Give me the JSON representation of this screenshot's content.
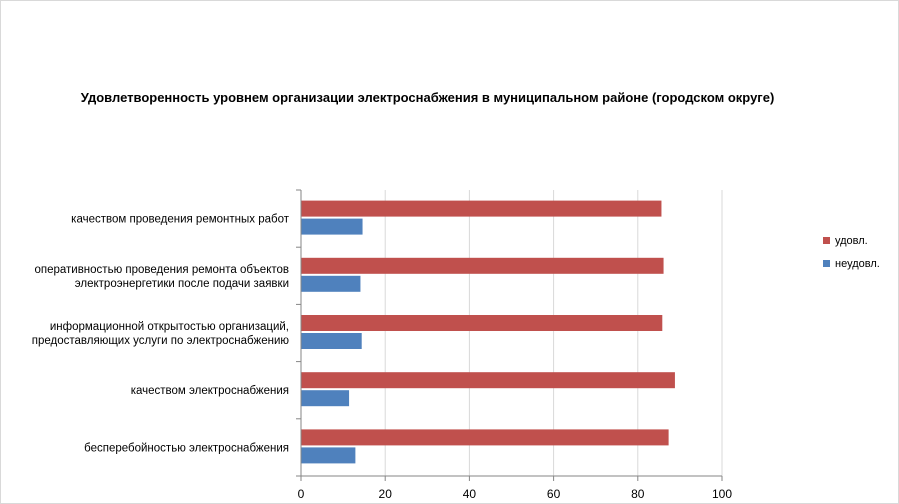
{
  "chart_data": {
    "type": "bar",
    "orientation": "horizontal",
    "title": "Удовлетворенность уровнем организации электроснабжения в муниципальном районе (городском округе)",
    "categories": [
      [
        "качеством проведения ремонтных работ"
      ],
      [
        "оперативностью проведения ремонта объектов",
        "электроэнергетики после подачи заявки"
      ],
      [
        "информационной открытостью организаций,",
        "предоставляющих услуги по электроснабжению"
      ],
      [
        "качеством электроснабжения"
      ],
      [
        "бесперебойностью электроснабжения"
      ]
    ],
    "series": [
      {
        "name": "удовл.",
        "color": "#c0504d",
        "values": [
          85.5,
          86,
          85.7,
          88.7,
          87.2
        ]
      },
      {
        "name": "неудовл.",
        "color": "#4f81bd",
        "values": [
          14.5,
          14,
          14.3,
          11.3,
          12.8
        ]
      }
    ],
    "xlim": [
      0,
      100
    ],
    "xticks": [
      0,
      20,
      40,
      60,
      80,
      100
    ],
    "grid": true,
    "legend_position": "right"
  }
}
